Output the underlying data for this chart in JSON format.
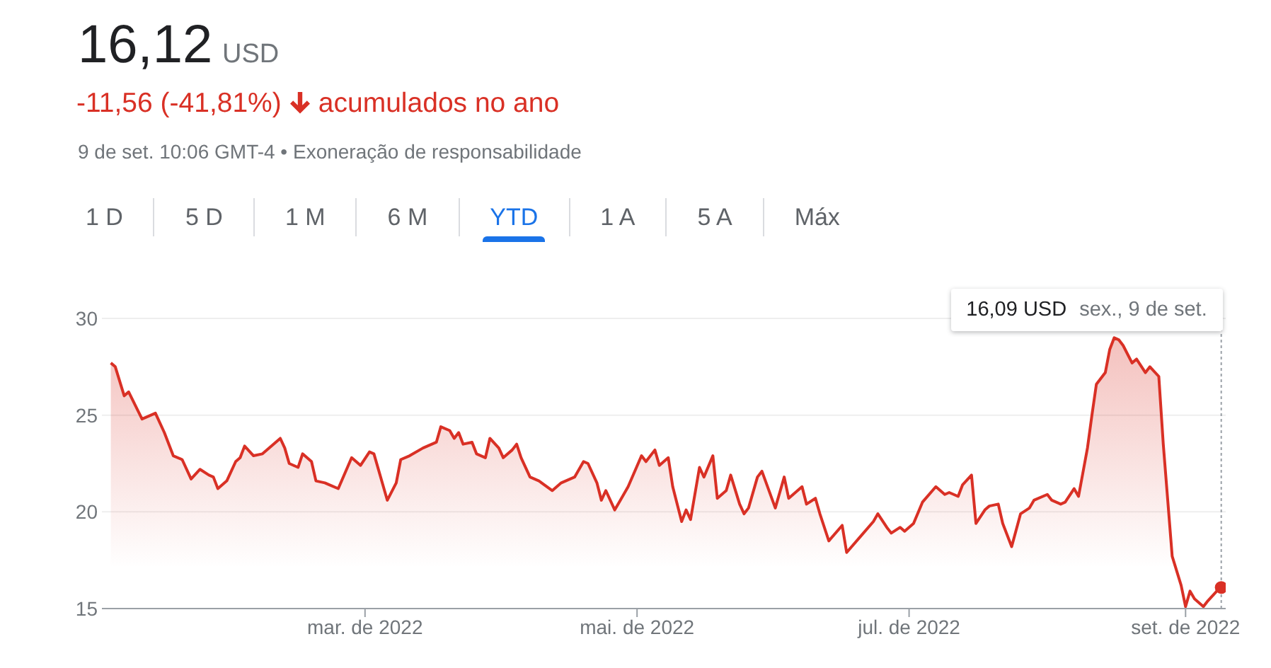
{
  "chart_data": {
    "type": "area",
    "title": "16,12",
    "annotations": [
      "USD",
      "-11,56 (-41,81%)",
      "acumulados no ano",
      "9 de set. 10:06 GMT-4 • Exoneração de responsabilidade",
      "1 D",
      "5 D",
      "1 M",
      "6 M",
      "YTD",
      "1 A",
      "5 A",
      "Máx",
      "16,09 USD",
      "sex., 9 de set."
    ],
    "x": [
      "2022-01-03",
      "2022-01-04",
      "2022-01-06",
      "2022-01-07",
      "2022-01-10",
      "2022-01-13",
      "2022-01-15",
      "2022-01-17",
      "2022-01-19",
      "2022-01-21",
      "2022-01-23",
      "2022-01-25",
      "2022-01-26",
      "2022-01-27",
      "2022-01-29",
      "2022-01-31",
      "2022-02-01",
      "2022-02-02",
      "2022-02-04",
      "2022-02-06",
      "2022-02-10",
      "2022-02-11",
      "2022-02-12",
      "2022-02-14",
      "2022-02-15",
      "2022-02-17",
      "2022-02-18",
      "2022-02-20",
      "2022-02-21",
      "2022-02-23",
      "2022-02-26",
      "2022-02-28",
      "2022-03-02",
      "2022-03-03",
      "2022-03-06",
      "2022-03-08",
      "2022-03-09",
      "2022-03-11",
      "2022-03-14",
      "2022-03-17",
      "2022-03-18",
      "2022-03-20",
      "2022-03-21",
      "2022-03-22",
      "2022-03-23",
      "2022-03-25",
      "2022-03-26",
      "2022-03-28",
      "2022-03-29",
      "2022-03-31",
      "2022-04-01",
      "2022-04-03",
      "2022-04-04",
      "2022-04-05",
      "2022-04-07",
      "2022-04-09",
      "2022-04-12",
      "2022-04-14",
      "2022-04-17",
      "2022-04-19",
      "2022-04-20",
      "2022-04-22",
      "2022-04-23",
      "2022-04-24",
      "2022-04-26",
      "2022-04-27",
      "2022-04-29",
      "2022-05-02",
      "2022-05-03",
      "2022-05-05",
      "2022-05-06",
      "2022-05-08",
      "2022-05-09",
      "2022-05-11",
      "2022-05-12",
      "2022-05-13",
      "2022-05-15",
      "2022-05-16",
      "2022-05-18",
      "2022-05-19",
      "2022-05-21",
      "2022-05-22",
      "2022-05-24",
      "2022-05-25",
      "2022-05-26",
      "2022-05-28",
      "2022-05-29",
      "2022-06-01",
      "2022-06-03",
      "2022-06-04",
      "2022-06-07",
      "2022-06-08",
      "2022-06-10",
      "2022-06-11",
      "2022-06-13",
      "2022-06-16",
      "2022-06-17",
      "2022-06-20",
      "2022-06-23",
      "2022-06-24",
      "2022-06-26",
      "2022-06-27",
      "2022-06-29",
      "2022-06-30",
      "2022-07-02",
      "2022-07-04",
      "2022-07-07",
      "2022-07-09",
      "2022-07-10",
      "2022-07-12",
      "2022-07-13",
      "2022-07-15",
      "2022-07-16",
      "2022-07-18",
      "2022-07-19",
      "2022-07-21",
      "2022-07-22",
      "2022-07-24",
      "2022-07-26",
      "2022-07-28",
      "2022-07-29",
      "2022-08-01",
      "2022-08-02",
      "2022-08-04",
      "2022-08-05",
      "2022-08-07",
      "2022-08-08",
      "2022-08-10",
      "2022-08-11",
      "2022-08-12",
      "2022-08-14",
      "2022-08-15",
      "2022-08-16",
      "2022-08-17",
      "2022-08-18",
      "2022-08-20",
      "2022-08-21",
      "2022-08-23",
      "2022-08-24",
      "2022-08-26",
      "2022-08-27",
      "2022-08-29",
      "2022-08-31",
      "2022-09-01",
      "2022-09-02",
      "2022-09-03",
      "2022-09-05",
      "2022-09-06",
      "2022-09-08",
      "2022-09-09"
    ],
    "series": [
      {
        "color": "#d93025",
        "values": [
          27.7,
          27.5,
          26.0,
          26.2,
          24.8,
          25.1,
          24.1,
          22.9,
          22.7,
          21.7,
          22.2,
          21.9,
          21.8,
          21.2,
          21.6,
          22.6,
          22.8,
          23.4,
          22.9,
          23.0,
          23.8,
          23.3,
          22.5,
          22.3,
          23.0,
          22.6,
          21.6,
          21.5,
          21.4,
          21.2,
          22.8,
          22.4,
          23.1,
          23.0,
          20.6,
          21.5,
          22.7,
          22.9,
          23.3,
          23.6,
          24.4,
          24.2,
          23.8,
          24.1,
          23.5,
          23.6,
          23.0,
          22.8,
          23.8,
          23.3,
          22.8,
          23.2,
          23.5,
          22.8,
          21.8,
          21.6,
          21.1,
          21.5,
          21.8,
          22.6,
          22.5,
          21.5,
          20.6,
          21.1,
          20.1,
          20.5,
          21.3,
          22.9,
          22.6,
          23.2,
          22.4,
          22.8,
          21.3,
          19.5,
          20.1,
          19.6,
          22.3,
          21.8,
          22.9,
          20.7,
          21.1,
          21.9,
          20.4,
          19.9,
          20.2,
          21.8,
          22.1,
          20.2,
          21.8,
          20.7,
          21.3,
          20.4,
          20.7,
          19.9,
          18.5,
          19.3,
          17.9,
          18.7,
          19.5,
          19.9,
          19.2,
          18.9,
          19.2,
          19.0,
          19.4,
          20.5,
          21.3,
          20.9,
          21.0,
          20.8,
          21.4,
          21.9,
          19.4,
          20.1,
          20.3,
          20.4,
          19.4,
          18.2,
          19.9,
          20.2,
          20.6,
          20.9,
          20.6,
          20.4,
          20.5,
          21.2,
          20.8,
          23.3,
          25.0,
          26.6,
          27.2,
          28.4,
          29.0,
          28.9,
          28.6,
          27.7,
          27.9,
          27.2,
          27.5,
          27.0,
          23.5,
          17.7,
          16.2,
          15.1,
          15.9,
          15.5,
          15.1,
          15.4,
          15.9,
          16.09
        ]
      },
      {
        "type": "scatter",
        "color": "#d93025",
        "marker": "circle",
        "x": [
          "2022-09-09"
        ],
        "values": [
          16.09
        ]
      }
    ],
    "xlim": [
      "2022-01-01",
      "2022-09-10"
    ],
    "xticks": [
      {
        "value": "2022-03-01",
        "label": "mar. de 2022"
      },
      {
        "value": "2022-05-01",
        "label": "mai. de 2022"
      },
      {
        "value": "2022-07-01",
        "label": "jul. de 2022"
      },
      {
        "value": "2022-09-01",
        "label": "set. de 2022"
      }
    ],
    "ylim": [
      15,
      30
    ],
    "yticks": [
      15,
      20,
      25,
      30
    ],
    "grid": "y",
    "ref_lines": [
      {
        "axis": "x",
        "value": "2022-09-09",
        "color": "#9aa0a6",
        "line_style": "dotted"
      }
    ]
  }
}
